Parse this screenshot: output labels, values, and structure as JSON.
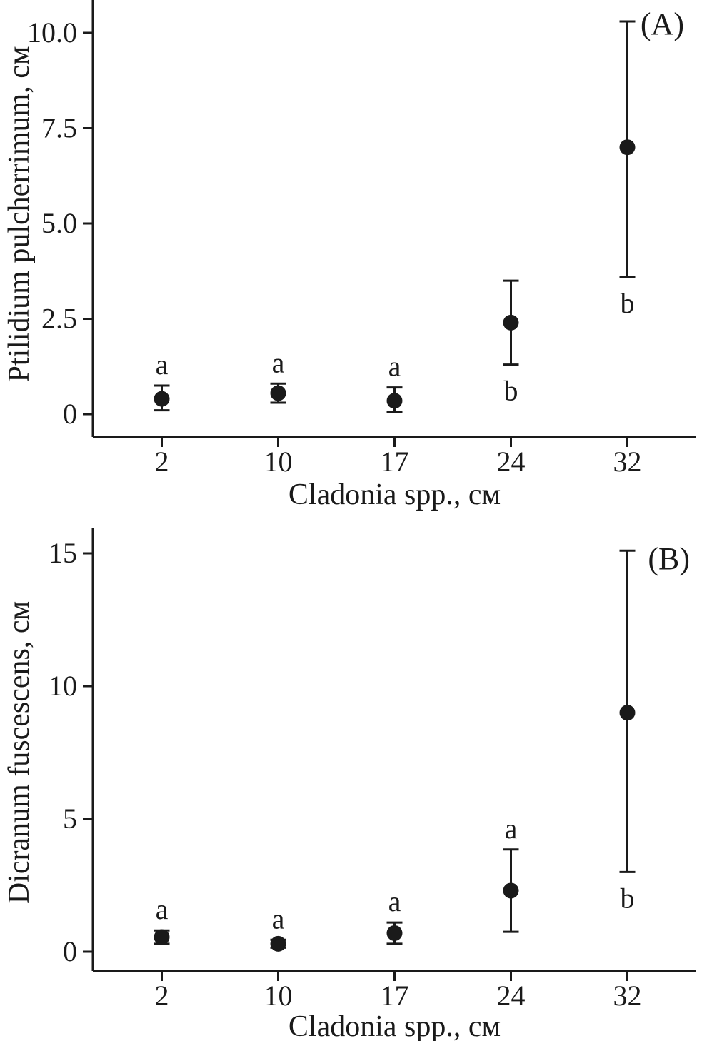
{
  "figure": {
    "background": "#ffffff",
    "text_color": "#1a1a1a",
    "marker_color": "#1a1a1a"
  },
  "chart_data": [
    {
      "type": "scatter",
      "panel_label": "(A)",
      "title": "",
      "xlabel": "Cladonia spp., см",
      "ylabel": "Ptilidium pulcherrimum, см",
      "categories": [
        "2",
        "10",
        "17",
        "24",
        "32"
      ],
      "values": [
        0.4,
        0.55,
        0.35,
        2.4,
        7.0
      ],
      "error_low": [
        0.1,
        0.3,
        0.05,
        1.3,
        3.6
      ],
      "error_high": [
        0.75,
        0.8,
        0.7,
        3.5,
        10.3
      ],
      "sig_letters": [
        "a",
        "a",
        "a",
        "b",
        "b"
      ],
      "letter_placement": [
        "above",
        "above",
        "above",
        "below",
        "below"
      ],
      "yticks": [
        0,
        2.5,
        5,
        7.5,
        10
      ],
      "ytick_labels": [
        "0",
        "2.5",
        "5.0",
        "7.5",
        "10.0"
      ],
      "ylim": [
        0,
        10.8
      ],
      "grid": false,
      "legend": "none"
    },
    {
      "type": "scatter",
      "panel_label": "(B)",
      "title": "",
      "xlabel": "Cladonia spp., см",
      "ylabel": "Dicranum fuscescens, см",
      "categories": [
        "2",
        "10",
        "17",
        "24",
        "32"
      ],
      "values": [
        0.55,
        0.3,
        0.7,
        2.3,
        9.0
      ],
      "error_low": [
        0.3,
        0.15,
        0.3,
        0.75,
        3.0
      ],
      "error_high": [
        0.8,
        0.45,
        1.1,
        3.85,
        15.1
      ],
      "sig_letters": [
        "a",
        "a",
        "a",
        "a",
        "b"
      ],
      "letter_placement": [
        "above",
        "above",
        "above",
        "above",
        "below"
      ],
      "yticks": [
        0,
        5,
        10,
        15
      ],
      "ytick_labels": [
        "0",
        "5",
        "10",
        "15"
      ],
      "ylim": [
        0,
        15.8
      ],
      "grid": false,
      "legend": "none"
    }
  ]
}
